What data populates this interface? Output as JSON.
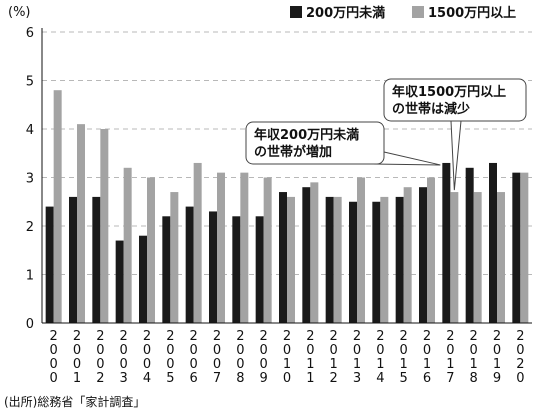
{
  "chart_data": {
    "type": "bar",
    "unit_label": "(%)",
    "categories": [
      "2000",
      "2001",
      "2002",
      "2003",
      "2004",
      "2005",
      "2006",
      "2007",
      "2008",
      "2009",
      "2010",
      "2011",
      "2012",
      "2013",
      "2014",
      "2015",
      "2016",
      "2017",
      "2018",
      "2019",
      "2020"
    ],
    "series": [
      {
        "name": "200万円未満",
        "color": "#1a1a1a",
        "values": [
          2.4,
          2.6,
          2.6,
          1.7,
          1.8,
          2.2,
          2.4,
          2.3,
          2.2,
          2.2,
          2.7,
          2.8,
          2.6,
          2.5,
          2.5,
          2.6,
          2.8,
          3.3,
          3.2,
          3.3,
          3.1
        ]
      },
      {
        "name": "1500万円以上",
        "color": "#a3a3a3",
        "values": [
          4.8,
          4.1,
          4.0,
          3.2,
          3.0,
          2.7,
          3.3,
          3.1,
          3.1,
          3.0,
          2.6,
          2.9,
          2.6,
          3.0,
          2.6,
          2.8,
          3.0,
          2.7,
          2.7,
          2.7,
          3.1
        ]
      }
    ],
    "ylim": [
      0,
      6
    ],
    "yticks": [
      0,
      1,
      2,
      3,
      4,
      5,
      6
    ],
    "grid": true,
    "legend_position": "top-right",
    "annotations": [
      {
        "lines": [
          "年収1500万円以上",
          "の世帯は減少"
        ],
        "points_to": "2017"
      },
      {
        "lines": [
          "年収200万円未満",
          "の世帯が増加"
        ],
        "points_to": "2017"
      }
    ]
  },
  "source": "(出所)総務省「家計調査」"
}
